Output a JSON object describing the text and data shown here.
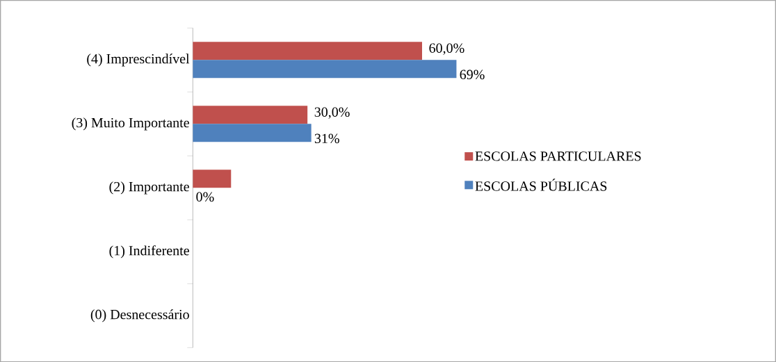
{
  "chart_data": {
    "type": "bar",
    "orientation": "horizontal",
    "categories": [
      "(4) Imprescindível",
      "(3) Muito Importante",
      "(2) Importante",
      "(1) Indiferente",
      "(0) Desnecessário"
    ],
    "series": [
      {
        "name": "ESCOLAS PARTICULARES",
        "color": "#c0504d",
        "values": [
          60,
          30,
          10,
          0,
          0
        ],
        "value_labels": [
          "60,0%",
          "30,0%",
          null,
          null,
          null
        ]
      },
      {
        "name": "ESCOLAS PÚBLICAS",
        "color": "#4f81bd",
        "values": [
          69,
          31,
          0,
          0,
          0
        ],
        "value_labels": [
          "69%",
          "31%",
          "0%",
          null,
          null
        ]
      }
    ],
    "legend": "right"
  }
}
